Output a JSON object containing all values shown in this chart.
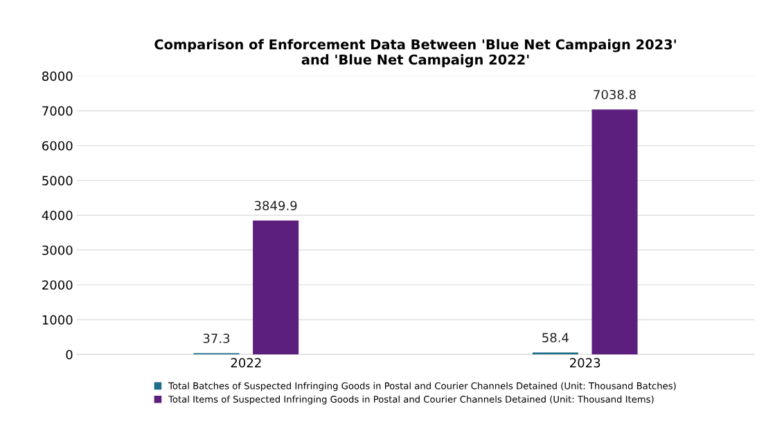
{
  "chart_data": {
    "type": "bar",
    "title": "Comparison of Enforcement Data Between 'Blue Net Campaign 2023'\nand 'Blue Net Campaign 2022'",
    "categories": [
      "2022",
      "2023"
    ],
    "series": [
      {
        "name": "Total Batches of Suspected Infringing Goods in Postal and Courier Channels Detained (Unit: Thousand Batches)",
        "color": "#1f6f8b",
        "values": [
          37.3,
          58.4
        ]
      },
      {
        "name": "Total Items of Suspected Infringing Goods in Postal and Courier Channels Detained (Unit: Thousand Items)",
        "color": "#5c1f7e",
        "values": [
          3849.9,
          7038.8
        ]
      }
    ],
    "ylim": [
      0,
      8000
    ],
    "yticks": [
      0,
      1000,
      2000,
      3000,
      4000,
      5000,
      6000,
      7000,
      8000
    ],
    "grid": "y",
    "legend": "bottom",
    "data_labels": true
  }
}
